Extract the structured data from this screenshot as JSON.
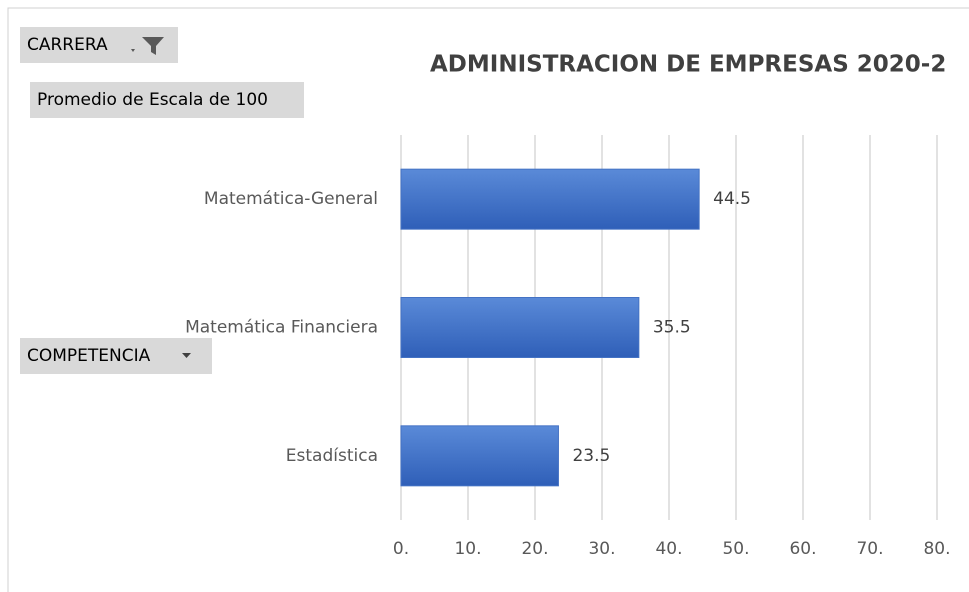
{
  "chart_data": {
    "type": "bar",
    "orientation": "horizontal",
    "title": "ADMINISTRACION DE EMPRESAS 2020-2",
    "filter_buttons": [
      "CARRERA",
      "Promedio de Escala de 100",
      "COMPETENCIA"
    ],
    "categories": [
      "Matemática-General",
      "Matemática Financiera",
      "Estadística"
    ],
    "values": [
      44.5,
      35.5,
      23.5
    ],
    "color": "#4472c4",
    "xlim": [
      0,
      85
    ],
    "xticks": [
      {
        "value": 0,
        "label": "0."
      },
      {
        "value": 10,
        "label": "10."
      },
      {
        "value": 20,
        "label": "20."
      },
      {
        "value": 30,
        "label": "30."
      },
      {
        "value": 40,
        "label": "40."
      },
      {
        "value": 50,
        "label": "50."
      },
      {
        "value": 60,
        "label": "60."
      },
      {
        "value": 70,
        "label": "70."
      },
      {
        "value": 80,
        "label": "80."
      }
    ],
    "grid": true
  }
}
